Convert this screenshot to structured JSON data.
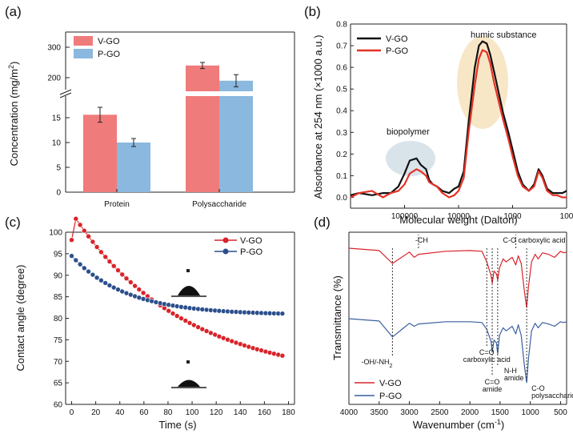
{
  "chart_data": [
    {
      "type": "bar",
      "panel": "(a)",
      "categories": [
        "Protein",
        "Polysaccharide"
      ],
      "series": [
        {
          "name": "V-GO",
          "color": "#f07b7b",
          "values": [
            15.6,
            240
          ],
          "errors": [
            1.5,
            10
          ]
        },
        {
          "name": "P-GO",
          "color": "#8ab8de",
          "values": [
            10.0,
            190
          ],
          "errors": [
            0.8,
            20
          ]
        }
      ],
      "ylabel": "Concentration (mg/m²)",
      "ylabel_base": "Concentration (mg/m",
      "ylabel_sup": "2",
      "ylabel_end": ")",
      "lower_range": [
        0,
        20
      ],
      "upper_range": [
        150,
        350
      ],
      "yticks_lower": [
        "0",
        "5",
        "10",
        "15"
      ],
      "yticks_upper": [
        "200",
        "300"
      ],
      "yticks_lower_values": [
        0,
        5,
        10,
        15
      ],
      "yticks_upper_values": [
        200,
        300
      ],
      "legend_position": "top-left"
    },
    {
      "type": "line",
      "panel": "(b)",
      "xlabel": "Molecular weight (Dalton)",
      "ylabel": "Absorbance at 254 nm (×1000 a.u.)",
      "x_scale": "log-reversed",
      "xlim": [
        1000000,
        100
      ],
      "ylim": [
        -0.05,
        0.8
      ],
      "xticks": [
        "100000",
        "10000",
        "1000",
        "100"
      ],
      "xtick_values": [
        100000,
        10000,
        1000,
        100
      ],
      "yticks": [
        "0.0",
        "0.1",
        "0.2",
        "0.3",
        "0.4",
        "0.5",
        "0.6",
        "0.7",
        "0.8"
      ],
      "ytick_values": [
        0.0,
        0.1,
        0.2,
        0.3,
        0.4,
        0.5,
        0.6,
        0.7,
        0.8
      ],
      "series": [
        {
          "name": "V-GO",
          "color": "#111111",
          "x": [
            1000000,
            700000,
            400000,
            250000,
            180000,
            130000,
            100000,
            80000,
            60000,
            50000,
            40000,
            35000,
            30000,
            25000,
            20000,
            15000,
            12000,
            10000,
            8000,
            6500,
            5000,
            4200,
            3600,
            3000,
            2600,
            2200,
            1800,
            1500,
            1200,
            1000,
            800,
            650,
            500,
            400,
            330,
            280,
            230,
            180,
            150,
            120,
            100
          ],
          "y": [
            0.01,
            0.02,
            0.01,
            0.02,
            0.02,
            0.05,
            0.11,
            0.17,
            0.18,
            0.15,
            0.13,
            0.08,
            0.06,
            0.05,
            0.03,
            0.02,
            0.04,
            0.05,
            0.12,
            0.35,
            0.6,
            0.7,
            0.72,
            0.71,
            0.66,
            0.58,
            0.48,
            0.39,
            0.3,
            0.22,
            0.12,
            0.06,
            0.03,
            0.06,
            0.13,
            0.1,
            0.04,
            0.02,
            0.02,
            0.02,
            0.03
          ]
        },
        {
          "name": "P-GO",
          "color": "#e63226",
          "x": [
            1000000,
            700000,
            400000,
            250000,
            180000,
            130000,
            100000,
            80000,
            60000,
            50000,
            40000,
            35000,
            30000,
            25000,
            20000,
            15000,
            12000,
            10000,
            8000,
            6500,
            5000,
            4200,
            3600,
            3000,
            2600,
            2200,
            1800,
            1500,
            1200,
            1000,
            800,
            650,
            500,
            400,
            330,
            280,
            230,
            180,
            150,
            120,
            100
          ],
          "y": [
            0.0,
            0.02,
            0.03,
            0.0,
            0.02,
            0.03,
            0.06,
            0.11,
            0.13,
            0.12,
            0.1,
            0.07,
            0.06,
            0.05,
            0.02,
            0.0,
            0.01,
            0.03,
            0.09,
            0.3,
            0.52,
            0.64,
            0.68,
            0.67,
            0.62,
            0.53,
            0.44,
            0.36,
            0.27,
            0.19,
            0.1,
            0.05,
            0.03,
            0.05,
            0.12,
            0.09,
            0.03,
            0.01,
            0.01,
            0.0,
            0.0
          ]
        }
      ],
      "annotations": [
        "humic substance",
        "biopolymer"
      ],
      "legend_position": "top-left"
    },
    {
      "type": "scatter",
      "panel": "(c)",
      "xlabel": "Time (s)",
      "ylabel": "Contact angle (degree)",
      "xlim": [
        -5,
        185
      ],
      "ylim": [
        60,
        100
      ],
      "xticks": [
        "0",
        "20",
        "40",
        "60",
        "80",
        "100",
        "120",
        "140",
        "160",
        "180"
      ],
      "xtick_values": [
        0,
        20,
        40,
        60,
        80,
        100,
        120,
        140,
        160,
        180
      ],
      "yticks": [
        "60",
        "65",
        "70",
        "75",
        "80",
        "85",
        "90",
        "95",
        "100"
      ],
      "ytick_values": [
        60,
        65,
        70,
        75,
        80,
        85,
        90,
        95,
        100
      ],
      "series": [
        {
          "name": "V-GO",
          "color": "#d9232a",
          "model": {
            "y_end": 67.5,
            "y0": 98.2,
            "rate": 0.012,
            "slope": 0.04
          }
        },
        {
          "name": "P-GO",
          "color": "#2c4f8c",
          "model": {
            "y_end": 80.8,
            "y0": 94.5,
            "rate": 0.022,
            "slope": 0.0
          }
        }
      ],
      "time_step": 3.5,
      "time_max": 178,
      "legend_position": "top-right"
    },
    {
      "type": "line",
      "panel": "(d)",
      "xlabel": "Wavenumber (cm⁻¹)",
      "xlabel_base": "Wavenumber (cm",
      "xlabel_sup": "-1",
      "xlabel_end": ")",
      "ylabel": "Transmittance (%)",
      "x_scale": "reversed",
      "xlim": [
        4000,
        400
      ],
      "xticks": [
        "4000",
        "3500",
        "3000",
        "2500",
        "2000",
        "1500",
        "1000",
        "500"
      ],
      "xtick_values": [
        4000,
        3500,
        3000,
        2500,
        2000,
        1500,
        1000,
        500
      ],
      "series": [
        {
          "name": "V-GO",
          "color": "#d9232a",
          "offset": 0,
          "baseline_by_x": [
            [
              4000,
              0.0
            ],
            [
              3500,
              3
            ],
            [
              3280,
              20
            ],
            [
              3000,
              5
            ],
            [
              2920,
              12
            ],
            [
              2850,
              8
            ],
            [
              2400,
              4
            ],
            [
              2000,
              3
            ],
            [
              1800,
              4
            ],
            [
              1720,
              18
            ],
            [
              1650,
              36
            ],
            [
              1630,
              46
            ],
            [
              1600,
              30
            ],
            [
              1560,
              34
            ],
            [
              1540,
              42
            ],
            [
              1510,
              26
            ],
            [
              1450,
              14
            ],
            [
              1400,
              18
            ],
            [
              1300,
              12
            ],
            [
              1240,
              22
            ],
            [
              1200,
              10
            ],
            [
              1150,
              20
            ],
            [
              1100,
              55
            ],
            [
              1060,
              78
            ],
            [
              1030,
              50
            ],
            [
              980,
              18
            ],
            [
              920,
              8
            ],
            [
              870,
              14
            ],
            [
              800,
              6
            ],
            [
              700,
              8
            ],
            [
              600,
              12
            ],
            [
              500,
              4
            ],
            [
              450,
              6
            ],
            [
              400,
              5
            ]
          ]
        },
        {
          "name": "P-GO",
          "color": "#3a5f9e",
          "offset": 100,
          "baseline_by_x": [
            [
              4000,
              0.0
            ],
            [
              3500,
              3
            ],
            [
              3280,
              24
            ],
            [
              3000,
              6
            ],
            [
              2920,
              10
            ],
            [
              2850,
              7
            ],
            [
              2400,
              4
            ],
            [
              2000,
              4
            ],
            [
              1800,
              5
            ],
            [
              1720,
              14
            ],
            [
              1650,
              30
            ],
            [
              1630,
              44
            ],
            [
              1600,
              28
            ],
            [
              1560,
              32
            ],
            [
              1540,
              46
            ],
            [
              1510,
              22
            ],
            [
              1450,
              12
            ],
            [
              1400,
              16
            ],
            [
              1300,
              10
            ],
            [
              1240,
              20
            ],
            [
              1200,
              8
            ],
            [
              1150,
              22
            ],
            [
              1100,
              60
            ],
            [
              1060,
              84
            ],
            [
              1030,
              52
            ],
            [
              980,
              16
            ],
            [
              920,
              6
            ],
            [
              870,
              12
            ],
            [
              800,
              5
            ],
            [
              700,
              7
            ],
            [
              600,
              10
            ],
            [
              500,
              4
            ],
            [
              450,
              5
            ],
            [
              400,
              4
            ]
          ]
        }
      ],
      "annotations": [
        {
          "text": "-CH",
          "x": 2850
        },
        {
          "text": "C-O carboxylic acid",
          "x": 1240
        },
        {
          "text": "-OH/-NH",
          "sub": "2",
          "x": 3280
        },
        {
          "text": "C=O",
          "sub_line": "carboxylic acid",
          "x": 1720
        },
        {
          "text": "C=O",
          "sub_line": "amide",
          "x": 1630
        },
        {
          "text": "N-H",
          "sub_line": "amide",
          "x": 1540
        },
        {
          "text": "C-O",
          "sub_line": "polysaccharide",
          "x": 1060
        }
      ],
      "legend_position": "bottom-left"
    }
  ]
}
